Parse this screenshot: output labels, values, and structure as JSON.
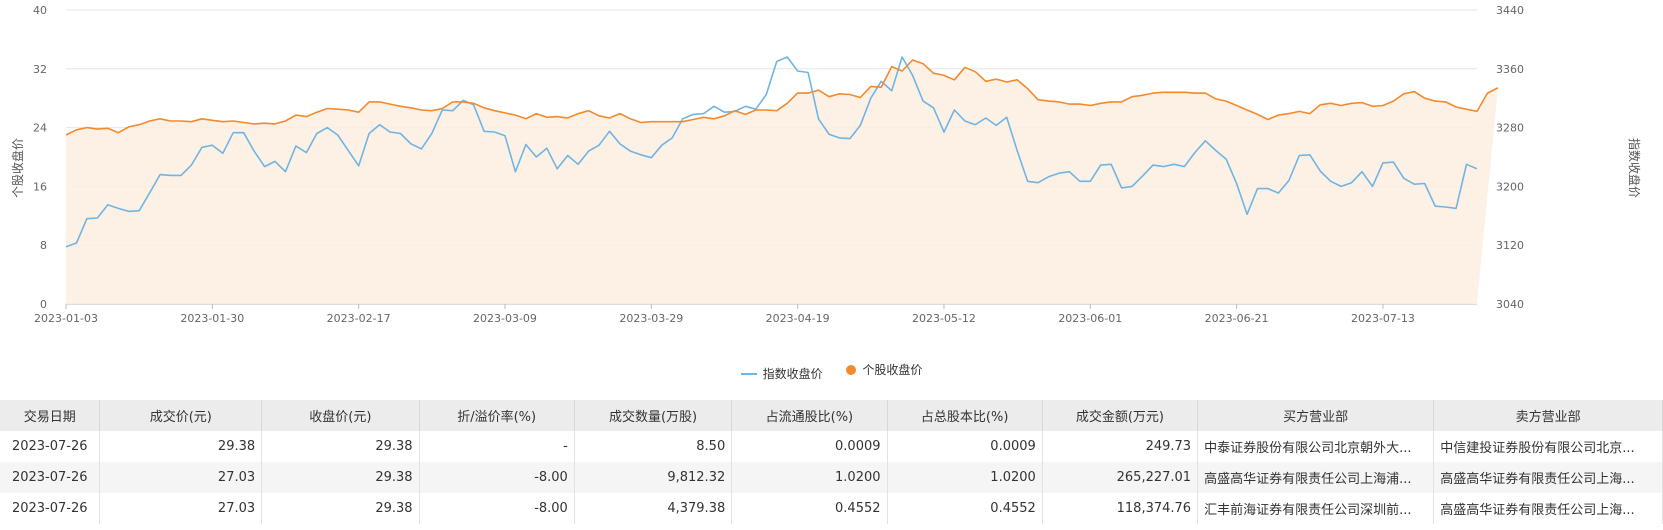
{
  "chart_data": {
    "type": "line",
    "ylabel_left": "个股收盘价",
    "ylabel_right": "指数收盘价",
    "left_ylim": [
      0,
      40
    ],
    "left_ticks": [
      "0",
      "8",
      "16",
      "24",
      "32",
      "40"
    ],
    "right_ylim": [
      3040,
      3440
    ],
    "right_ticks": [
      "3040",
      "3120",
      "3200",
      "3280",
      "3360",
      "3440"
    ],
    "x_tick_labels": [
      "2023-01-03",
      "2023-01-30",
      "2023-02-17",
      "2023-03-09",
      "2023-03-29",
      "2023-04-19",
      "2023-05-12",
      "2023-06-01",
      "2023-06-21",
      "2023-07-13"
    ],
    "x_tick_index": [
      0,
      14,
      28,
      42,
      56,
      70,
      84,
      98,
      112,
      126
    ],
    "grid": true,
    "legend_position": "bottom-center",
    "series": [
      {
        "name": "指数收盘价",
        "axis": "right",
        "color": "#6fb5e4",
        "values": [
          3118,
          3123,
          3156,
          3157,
          3175,
          3170,
          3166,
          3167,
          3191,
          3216,
          3215,
          3215,
          3229,
          3253,
          3256,
          3245,
          3273,
          3273,
          3248,
          3227,
          3234,
          3220,
          3255,
          3246,
          3272,
          3280,
          3270,
          3249,
          3228,
          3272,
          3284,
          3274,
          3272,
          3258,
          3251,
          3272,
          3304,
          3303,
          3317,
          3311,
          3275,
          3274,
          3269,
          3220,
          3257,
          3240,
          3252,
          3224,
          3242,
          3230,
          3248,
          3256,
          3275,
          3258,
          3248,
          3243,
          3239,
          3256,
          3266,
          3292,
          3298,
          3299,
          3309,
          3301,
          3302,
          3309,
          3305,
          3325,
          3370,
          3376,
          3357,
          3355,
          3292,
          3271,
          3266,
          3265,
          3283,
          3320,
          3343,
          3330,
          3376,
          3351,
          3316,
          3307,
          3274,
          3304,
          3289,
          3284,
          3293,
          3283,
          3294,
          3249,
          3207,
          3205,
          3213,
          3218,
          3220,
          3207,
          3207,
          3229,
          3230,
          3198,
          3200,
          3214,
          3229,
          3227,
          3230,
          3227,
          3246,
          3262,
          3249,
          3237,
          3204,
          3162,
          3197,
          3197,
          3191,
          3208,
          3242,
          3243,
          3221,
          3207,
          3200,
          3205,
          3220,
          3200,
          3232,
          3233,
          3211,
          3203,
          3204,
          3173,
          3172,
          3170,
          3230,
          3224
        ]
      },
      {
        "name": "个股收盘价",
        "axis": "left",
        "color": "#f28a2e",
        "values": [
          23.0,
          23.7,
          24.0,
          23.8,
          23.9,
          23.3,
          24.1,
          24.4,
          24.9,
          25.2,
          24.9,
          24.9,
          24.8,
          25.2,
          25.0,
          24.8,
          24.9,
          24.7,
          24.5,
          24.6,
          24.5,
          24.9,
          25.7,
          25.5,
          26.1,
          26.6,
          26.5,
          26.4,
          26.1,
          27.5,
          27.5,
          27.2,
          26.9,
          26.7,
          26.4,
          26.3,
          26.6,
          27.5,
          27.5,
          27.3,
          26.7,
          26.3,
          26.0,
          25.7,
          25.2,
          25.9,
          25.4,
          25.5,
          25.3,
          25.9,
          26.3,
          25.6,
          25.3,
          25.9,
          25.2,
          24.7,
          24.8,
          24.8,
          24.8,
          24.8,
          25.1,
          25.4,
          25.2,
          25.6,
          26.3,
          25.8,
          26.4,
          26.4,
          26.3,
          27.3,
          28.7,
          28.7,
          29.1,
          28.2,
          28.6,
          28.5,
          28.1,
          29.6,
          29.5,
          32.3,
          31.7,
          33.2,
          32.7,
          31.4,
          31.1,
          30.5,
          32.2,
          31.6,
          30.3,
          30.6,
          30.2,
          30.5,
          29.3,
          27.8,
          27.6,
          27.5,
          27.2,
          27.2,
          27.0,
          27.3,
          27.5,
          27.5,
          28.2,
          28.4,
          28.7,
          28.8,
          28.8,
          28.8,
          28.7,
          28.7,
          27.9,
          27.6,
          27.0,
          26.4,
          25.8,
          25.1,
          25.7,
          25.9,
          26.2,
          25.9,
          27.1,
          27.3,
          27.0,
          27.3,
          27.4,
          26.9,
          27.0,
          27.6,
          28.6,
          28.9,
          28.0,
          27.6,
          27.5,
          26.8,
          26.5,
          26.2,
          28.7,
          29.4
        ]
      }
    ]
  },
  "legend": {
    "index_label": "指数收盘价",
    "stock_label": "个股收盘价"
  },
  "table": {
    "headers": [
      "交易日期",
      "成交价(元)",
      "收盘价(元)",
      "折/溢价率(%)",
      "成交数量(万股)",
      "占流通股比(%)",
      "占总股本比(%)",
      "成交金额(万元)",
      "买方营业部",
      "卖方营业部"
    ],
    "rows": [
      [
        "2023-07-26",
        "29.38",
        "29.38",
        "-",
        "8.50",
        "0.0009",
        "0.0009",
        "249.73",
        "中泰证券股份有限公司北京朝外大...",
        "中信建投证券股份有限公司北京..."
      ],
      [
        "2023-07-26",
        "27.03",
        "29.38",
        "-8.00",
        "9,812.32",
        "1.0200",
        "1.0200",
        "265,227.01",
        "高盛高华证券有限责任公司上海浦...",
        "高盛高华证券有限责任公司上海..."
      ],
      [
        "2023-07-26",
        "27.03",
        "29.38",
        "-8.00",
        "4,379.38",
        "0.4552",
        "0.4552",
        "118,374.76",
        "汇丰前海证券有限责任公司深圳前...",
        "高盛高华证券有限责任公司上海..."
      ]
    ]
  }
}
